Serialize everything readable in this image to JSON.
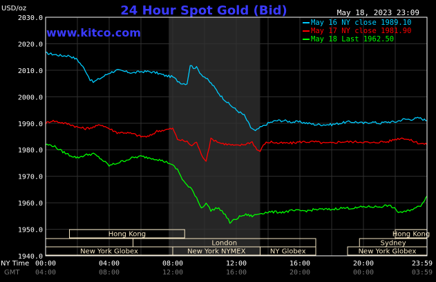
{
  "header": {
    "unit_label": "USD/oz",
    "title": "24 Hour Spot Gold (Bid)",
    "timestamp": "May 18, 2023 23:09",
    "watermark": "www.kitco.com"
  },
  "colors": {
    "background": "#000000",
    "frame": "#ffffff",
    "title": "#3a3aff",
    "grid": "#303030",
    "highlight": "#262626",
    "may16": "#00ccff",
    "may17": "#ff0000",
    "may18": "#00ff00",
    "session_box": "#f5e6c3",
    "session_text": "#000000",
    "axis_text": "#ffffff",
    "gmt_text": "#777777"
  },
  "legend": [
    {
      "label": "May 16 NY close 1989.10",
      "color": "#00ccff"
    },
    {
      "label": "May 17 NY close 1981.90",
      "color": "#ff0000"
    },
    {
      "label": "May 18 Last 1962.50",
      "color": "#00ff00"
    }
  ],
  "sessions": {
    "rows": [
      [
        {
          "label": "Hong Kong",
          "start": 1.5,
          "end": 8.75
        },
        {
          "label": "Hong Kong",
          "start": 22.0,
          "end": 24.0
        }
      ],
      [
        {
          "label": "",
          "start": 0.0,
          "end": 5.5
        },
        {
          "label": "London",
          "start": 5.5,
          "end": 17.0
        },
        {
          "label": "Sydney",
          "start": 19.75,
          "end": 24.0
        }
      ],
      [
        {
          "label": "New York Globex",
          "start": 0.0,
          "end": 8.0
        },
        {
          "label": "New York NYMEX",
          "start": 8.0,
          "end": 13.5
        },
        {
          "label": "NY Globex",
          "start": 13.5,
          "end": 17.0
        },
        {
          "label": "New York Globex",
          "start": 19.0,
          "end": 24.0
        }
      ]
    ]
  },
  "axis_rows": {
    "ny_label": "NY Time",
    "gmt_label": "GMT"
  },
  "chart_data": {
    "type": "line",
    "title": "24 Hour Spot Gold (Bid)",
    "ylabel": "USD/oz",
    "ylim": [
      1940,
      2030
    ],
    "y_ticks": [
      "1940.0",
      "1950.0",
      "1960.0",
      "1970.0",
      "1980.0",
      "1990.0",
      "2000.0",
      "2010.0",
      "2020.0",
      "2030.0"
    ],
    "xlim": [
      0,
      24
    ],
    "x_ticks": [
      0,
      4,
      8,
      12,
      16,
      20,
      24
    ],
    "x_tick_labels": [
      "00:00",
      "04:00",
      "08:00",
      "12:00",
      "16:00",
      "20:00",
      "23:59"
    ],
    "gmt_tick_labels": [
      "04:00",
      "08:00",
      "12:00",
      "16:00",
      "20:00",
      "00:00",
      "03:59"
    ],
    "grid": true,
    "highlight_range": [
      7.75,
      13.5
    ],
    "legend_position": "top-right",
    "series": [
      {
        "name": "May 16 NY close 1989.10",
        "x": [
          0,
          0.5,
          1.0,
          1.5,
          2.0,
          2.5,
          2.8,
          3.0,
          3.3,
          3.6,
          4.0,
          4.5,
          5.0,
          5.5,
          6.0,
          6.5,
          7.0,
          7.5,
          8.0,
          8.3,
          8.6,
          8.9,
          9.1,
          9.3,
          9.5,
          9.8,
          10.1,
          10.5,
          11.0,
          11.5,
          12.0,
          12.5,
          12.9,
          13.2,
          13.4,
          13.7,
          14.0,
          14.5,
          15.0,
          15.5,
          16.0,
          16.5,
          17.0,
          17.5,
          18.0,
          18.5,
          19.0,
          19.5,
          20.0,
          20.5,
          21.0,
          21.5,
          22.0,
          22.5,
          23.0,
          23.5,
          24.0
        ],
        "values": [
          2016.5,
          2016,
          2015.5,
          2015.5,
          2014,
          2010,
          2006.5,
          2005.5,
          2006.5,
          2007.5,
          2009,
          2010,
          2009.5,
          2009,
          2009.5,
          2009.5,
          2009,
          2008,
          2007.5,
          2006,
          2005,
          2005,
          2012,
          2011,
          2011,
          2008.5,
          2007,
          2004.5,
          2000.5,
          1997.5,
          1995,
          1993,
          1988.5,
          1987,
          1988,
          1989,
          1990,
          1991,
          1991,
          1990.5,
          1990.5,
          1990,
          1989.5,
          1989.5,
          1989.5,
          1990,
          1990.5,
          1990.5,
          1990,
          1990.5,
          1990,
          1990.5,
          1990.5,
          1991.5,
          1991.5,
          1992,
          1991
        ]
      },
      {
        "name": "May 17 NY close 1981.90",
        "x": [
          0,
          0.4,
          0.8,
          1.2,
          1.6,
          2.0,
          2.5,
          3.0,
          3.5,
          4.0,
          4.5,
          5.0,
          5.5,
          6.0,
          6.5,
          7.0,
          7.5,
          8.0,
          8.3,
          8.6,
          8.9,
          9.2,
          9.5,
          9.8,
          10.1,
          10.4,
          10.7,
          11.0,
          11.5,
          12.0,
          12.5,
          13.0,
          13.3,
          13.5,
          13.8,
          14.2,
          14.6,
          15.0,
          15.5,
          16.0,
          16.5,
          17.0,
          17.5,
          18.0,
          18.5,
          19.0,
          19.5,
          20.0,
          20.5,
          21.0,
          21.5,
          22.0,
          22.5,
          23.0,
          23.5,
          24.0
        ],
        "values": [
          1990,
          1991,
          1990.5,
          1990,
          1989.5,
          1988.5,
          1988,
          1988.5,
          1989.5,
          1988,
          1986.5,
          1986.5,
          1986,
          1985,
          1985,
          1987,
          1987.5,
          1988,
          1984,
          1983.5,
          1983,
          1981.5,
          1983,
          1978,
          1976,
          1984,
          1983.5,
          1982.5,
          1982,
          1981.5,
          1982,
          1983,
          1980,
          1979.5,
          1982.5,
          1983,
          1982.5,
          1982.5,
          1982.5,
          1983,
          1983,
          1983,
          1982.5,
          1982.5,
          1983,
          1983,
          1983,
          1983,
          1982.5,
          1983,
          1983,
          1984,
          1984.5,
          1983.5,
          1982.5,
          1982
        ]
      },
      {
        "name": "May 18 Last 1962.50",
        "x": [
          0,
          0.5,
          1.0,
          1.5,
          2.0,
          2.5,
          3.0,
          3.5,
          4.0,
          4.5,
          5.0,
          5.5,
          6.0,
          6.5,
          7.0,
          7.5,
          7.8,
          8.0,
          8.3,
          8.6,
          8.9,
          9.2,
          9.5,
          9.8,
          10.1,
          10.4,
          10.7,
          11.0,
          11.3,
          11.6,
          12.0,
          12.3,
          12.6,
          13.0,
          13.5,
          14.0,
          14.5,
          15.0,
          15.5,
          16.0,
          16.5,
          17.0,
          17.5,
          18.0,
          18.5,
          19.0,
          19.5,
          20.0,
          20.5,
          21.0,
          21.5,
          21.8,
          22.2,
          22.6,
          23.0,
          23.3,
          23.6,
          24.0
        ],
        "values": [
          1982,
          1981.5,
          1979.5,
          1978,
          1977,
          1978,
          1978.5,
          1976.5,
          1974,
          1975,
          1976,
          1977,
          1977.5,
          1977,
          1976.5,
          1975.5,
          1975,
          1974,
          1972.5,
          1969,
          1966.5,
          1965,
          1962,
          1958,
          1960,
          1957,
          1958,
          1957.5,
          1955.5,
          1952.5,
          1954,
          1955,
          1955.5,
          1955,
          1956,
          1956.5,
          1956.5,
          1956.5,
          1957,
          1957,
          1957,
          1957.5,
          1957.5,
          1957.5,
          1958,
          1958,
          1958,
          1958.5,
          1958.5,
          1958.5,
          1959,
          1958.5,
          1956.5,
          1956.5,
          1957.5,
          1958,
          1959,
          1962.5
        ]
      }
    ]
  }
}
